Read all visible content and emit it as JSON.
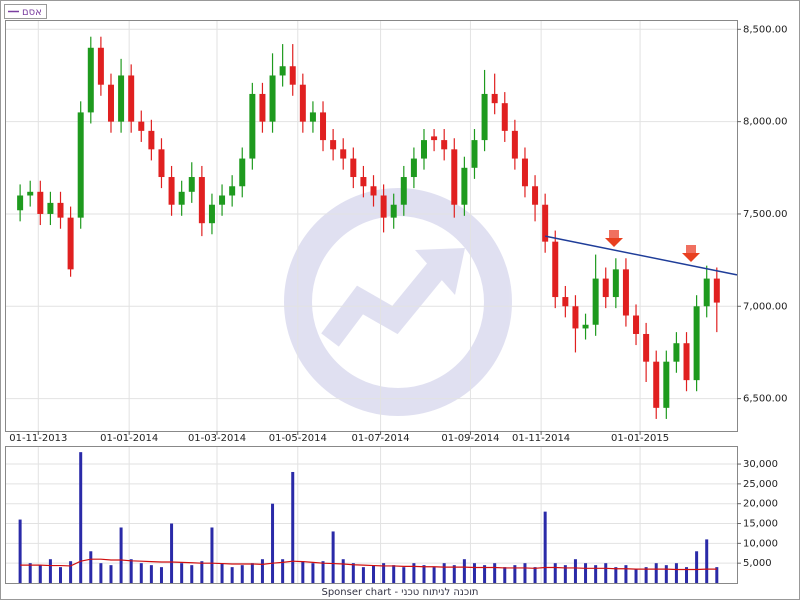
{
  "chart_data": [
    {
      "type": "candlestick",
      "name": "אסם",
      "legend_color": "#7b3fa0",
      "up_color": "#1e9a1e",
      "down_color": "#e02020",
      "grid": true,
      "open": [
        7520,
        7600,
        7620,
        7500,
        7560,
        7480,
        7480,
        8050,
        8400,
        8200,
        8000,
        8250,
        8000,
        7950,
        7850,
        7700,
        7550,
        7620,
        7700,
        7450,
        7550,
        7600,
        7650,
        7800,
        8150,
        8000,
        8250,
        8300,
        8200,
        8000,
        8050,
        7900,
        7850,
        7800,
        7700,
        7650,
        7600,
        7480,
        7550,
        7700,
        7800,
        7920,
        7900,
        7850,
        7550,
        7750,
        7900,
        8150,
        8100,
        7950,
        7800,
        7650,
        7550,
        7350,
        7050,
        7000,
        6880,
        6900,
        7150,
        7050,
        7200,
        6950,
        6850,
        6700,
        6450,
        6700,
        6800,
        6600,
        7000,
        7150
      ],
      "high": [
        7660,
        7680,
        7680,
        7620,
        7620,
        7540,
        8110,
        8460,
        8460,
        8260,
        8340,
        8310,
        8060,
        8010,
        7910,
        7760,
        7680,
        7780,
        7760,
        7610,
        7660,
        7710,
        7860,
        8210,
        8210,
        8370,
        8420,
        8420,
        8260,
        8110,
        8110,
        7960,
        7910,
        7860,
        7760,
        7710,
        7660,
        7610,
        7760,
        7860,
        7960,
        7960,
        7960,
        7910,
        7810,
        7960,
        8280,
        8260,
        8160,
        8010,
        7860,
        7710,
        7610,
        7410,
        7110,
        7060,
        6960,
        7280,
        7210,
        7260,
        7260,
        7010,
        6910,
        6760,
        6760,
        6860,
        6860,
        7060,
        7220,
        7210
      ],
      "low": [
        7460,
        7540,
        7440,
        7440,
        7420,
        7160,
        7420,
        7990,
        8140,
        7940,
        7940,
        7940,
        7890,
        7790,
        7640,
        7490,
        7490,
        7560,
        7380,
        7390,
        7490,
        7540,
        7590,
        7740,
        7940,
        7940,
        8190,
        8140,
        7940,
        7940,
        7840,
        7790,
        7740,
        7640,
        7590,
        7540,
        7400,
        7420,
        7490,
        7640,
        7740,
        7840,
        7790,
        7480,
        7490,
        7690,
        7840,
        8040,
        7890,
        7740,
        7590,
        7460,
        7290,
        6990,
        6940,
        6750,
        6820,
        6840,
        6990,
        6990,
        6890,
        6790,
        6590,
        6390,
        6390,
        6640,
        6540,
        6540,
        6940,
        6860
      ],
      "close": [
        7600,
        7620,
        7500,
        7560,
        7480,
        7200,
        8050,
        8400,
        8200,
        8000,
        8250,
        8000,
        7950,
        7850,
        7700,
        7550,
        7620,
        7700,
        7450,
        7550,
        7600,
        7650,
        7800,
        8150,
        8000,
        8250,
        8300,
        8200,
        8000,
        8050,
        7900,
        7850,
        7800,
        7700,
        7650,
        7600,
        7480,
        7550,
        7700,
        7800,
        7900,
        7900,
        7850,
        7550,
        7750,
        7900,
        8150,
        8100,
        7950,
        7800,
        7650,
        7550,
        7350,
        7050,
        7000,
        6880,
        6900,
        7150,
        7050,
        7200,
        6950,
        6850,
        6700,
        6450,
        6700,
        6800,
        6600,
        7000,
        7150,
        7020
      ],
      "ylim": [
        6330,
        8545
      ],
      "yticks": [
        {
          "value": 6500,
          "label": "6,500.00"
        },
        {
          "value": 7000,
          "label": "7,000.00"
        },
        {
          "value": 7500,
          "label": "7,500.00"
        },
        {
          "value": 8000,
          "label": "8,000.00"
        },
        {
          "value": 8500,
          "label": "8,500.00"
        }
      ],
      "xlim": [
        -1.2,
        71
      ],
      "xticks": [
        {
          "value": 1.8,
          "label": "01-11-2013"
        },
        {
          "value": 10.8,
          "label": "01-01-2014"
        },
        {
          "value": 19.5,
          "label": "01-03-2014"
        },
        {
          "value": 27.5,
          "label": "01-05-2014"
        },
        {
          "value": 35.7,
          "label": "01-07-2014"
        },
        {
          "value": 44.6,
          "label": "01-09-2014"
        },
        {
          "value": 51.6,
          "label": "01-11-2014"
        },
        {
          "value": 61.4,
          "label": "01-01-2015"
        }
      ],
      "trendline": {
        "x": [
          52,
          71
        ],
        "values": [
          7380,
          7170
        ],
        "color": "#1f3d99"
      }
    },
    {
      "type": "bar",
      "grid": true,
      "series": [
        {
          "type": "bar",
          "color": "#2a2aa8",
          "values": [
            16000,
            5000,
            4500,
            6000,
            4000,
            5500,
            33000,
            8000,
            5000,
            4500,
            14000,
            6000,
            5000,
            4500,
            4000,
            15000,
            5000,
            4500,
            5500,
            14000,
            5000,
            4000,
            4500,
            5000,
            6000,
            20000,
            6000,
            28000,
            5500,
            5000,
            5500,
            13000,
            6000,
            5000,
            4000,
            4500,
            5000,
            4500,
            4000,
            5000,
            4500,
            4000,
            5000,
            4500,
            6000,
            5000,
            4500,
            5000,
            4000,
            4500,
            5000,
            4000,
            18000,
            5000,
            4500,
            6000,
            5000,
            4500,
            5000,
            4000,
            4500,
            3500,
            4000,
            5000,
            4500,
            5000,
            4000,
            8000,
            11000,
            4000
          ]
        },
        {
          "type": "line",
          "color": "#d01010",
          "values": [
            4500,
            4500,
            4500,
            4400,
            4400,
            4300,
            5500,
            6000,
            6000,
            5800,
            5800,
            5600,
            5500,
            5400,
            5300,
            5300,
            5200,
            5100,
            5000,
            5000,
            4900,
            4800,
            4800,
            4800,
            4700,
            5000,
            5200,
            5500,
            5400,
            5200,
            5000,
            4900,
            4800,
            4600,
            4500,
            4400,
            4300,
            4300,
            4200,
            4200,
            4100,
            4100,
            4000,
            4000,
            4000,
            3900,
            3900,
            3900,
            3800,
            3800,
            3800,
            3700,
            3900,
            3900,
            3800,
            3800,
            3700,
            3700,
            3700,
            3600,
            3600,
            3500,
            3500,
            3500,
            3500,
            3400,
            3400,
            3400,
            3500,
            3500
          ]
        }
      ],
      "ylim": [
        0,
        34300
      ],
      "yticks": [
        {
          "value": 5000,
          "label": "5,000"
        },
        {
          "value": 10000,
          "label": "10,000"
        },
        {
          "value": 15000,
          "label": "15,000"
        },
        {
          "value": 20000,
          "label": "20,000"
        },
        {
          "value": 25000,
          "label": "25,000"
        },
        {
          "value": 30000,
          "label": "30,000"
        }
      ],
      "xlim": [
        -1.2,
        71
      ]
    }
  ],
  "footer": "Sponser chart - תוכנה לניתוח טכני"
}
